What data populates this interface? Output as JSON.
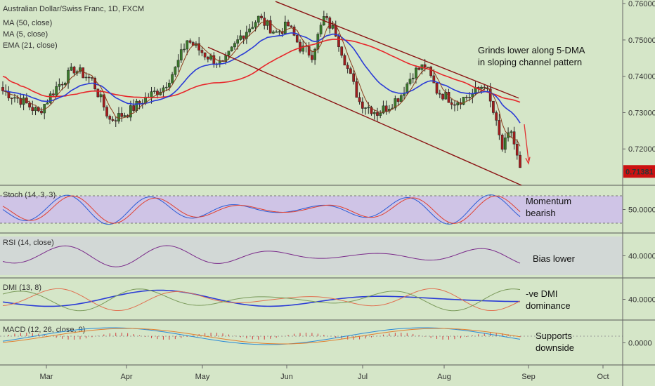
{
  "chart_data": {
    "type": "candlestick",
    "header": {
      "symbol": "Australian Dollar/Swiss Franc, 1D, FXCM",
      "indicators": [
        "MA (50, close)",
        "MA (5, close)",
        "EMA (21, close)"
      ]
    },
    "price_axis": {
      "ticks": [
        "0.76000",
        "0.75000",
        "0.74000",
        "0.73000",
        "0.72000"
      ],
      "ylim": [
        0.71,
        0.761
      ]
    },
    "last_price": {
      "label": "0.71381",
      "value": 0.71381,
      "color": "#cc1111"
    },
    "x_axis": {
      "labels": [
        "Mar",
        "Apr",
        "May",
        "Jun",
        "Jul",
        "Aug",
        "Sep",
        "Oct"
      ]
    },
    "annotations": [
      {
        "text": [
          "Grinds lower along 5-DMA",
          "in sloping channel pattern"
        ]
      }
    ],
    "panels": [
      {
        "name": "Stoch (14, 3, 3)",
        "tick": "50.0000",
        "note": [
          "Momentum",
          "bearish"
        ],
        "fill": "#cfc4e6"
      },
      {
        "name": "RSI (14, close)",
        "tick": "40.0000",
        "note": [
          "Bias lower"
        ],
        "fill": "#d2d8d6"
      },
      {
        "name": "DMI (13, 8)",
        "tick": "40.0000",
        "note": [
          "-ve DMI",
          "dominance"
        ],
        "fill": "#d5e6c8"
      },
      {
        "name": "MACD (12, 26, close, 9)",
        "tick": "0.0000",
        "note": [
          "Supports",
          "downside"
        ],
        "fill": "#d5e6c8"
      }
    ],
    "colors": {
      "up": "#3a7a2a",
      "down": "#a31d1d",
      "ma50": "#e8262a",
      "ma5": "#8a3a1c",
      "ema21": "#2a3bd6",
      "channel": "#8b1414"
    }
  }
}
